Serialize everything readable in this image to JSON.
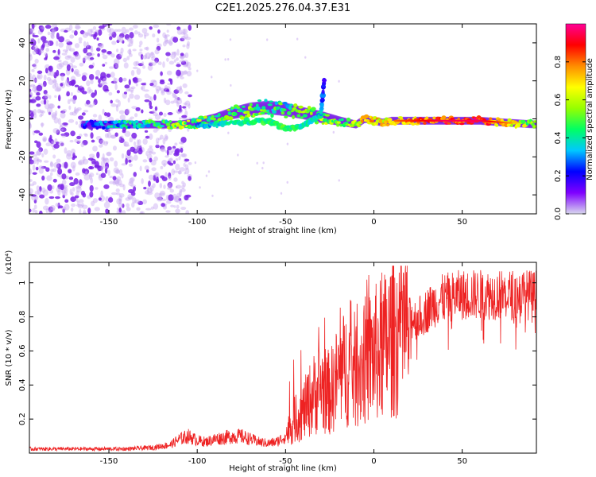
{
  "title": "C2E1.2025.276.04.37.E31",
  "colors": {
    "snr_line": "#ee2222",
    "axis": "#000000",
    "faint_marks": "#c8a8f2",
    "dense_marks": "#7a22e6"
  },
  "chart_data": [
    {
      "type": "heatmap",
      "name": "spectrogram",
      "xlabel": "Height of straight line (km)",
      "ylabel": "Frequency (Hz)",
      "xlim": [
        -195,
        92
      ],
      "ylim": [
        -50,
        50
      ],
      "x_ticks": [
        -150,
        -100,
        -50,
        0,
        50
      ],
      "x_tick_labels": [
        "-150",
        "-100",
        "-50",
        "0",
        "50"
      ],
      "y_ticks": [
        -40,
        -20,
        0,
        20,
        40
      ],
      "y_tick_labels": [
        "-40",
        "-20",
        "0",
        "20",
        "40"
      ],
      "colorbar": {
        "label": "Normalized spectral amplitude",
        "range": [
          0,
          1
        ],
        "ticks": [
          0.0,
          0.2,
          0.4,
          0.6,
          0.8
        ],
        "tick_labels": [
          "0.0",
          "0.2",
          "0.4",
          "0.6",
          "0.8"
        ],
        "stops": [
          "#d8d8ee",
          "#7f00ff",
          "#0000ff",
          "#00c8ff",
          "#00ff64",
          "#96ff00",
          "#ffff00",
          "#ff8c00",
          "#ff0000",
          "#ff0096"
        ]
      },
      "noise_region": {
        "x_range": [
          -195,
          -118
        ],
        "freq_range": [
          -50,
          50
        ]
      },
      "main_trace": [
        {
          "x": -165,
          "freq": -3,
          "amp": 0.15,
          "width": 3
        },
        {
          "x": -150,
          "freq": -3,
          "amp": 0.3,
          "width": 3
        },
        {
          "x": -140,
          "freq": -3,
          "amp": 0.35,
          "width": 3
        },
        {
          "x": -130,
          "freq": -3,
          "amp": 0.4,
          "width": 3
        },
        {
          "x": -120,
          "freq": -3,
          "amp": 0.45,
          "width": 3
        },
        {
          "x": -110,
          "freq": -3,
          "amp": 0.55,
          "width": 3
        },
        {
          "x": -100,
          "freq": -2,
          "amp": 0.5,
          "width": 4
        },
        {
          "x": -90,
          "freq": 0,
          "amp": 0.45,
          "width": 5
        },
        {
          "x": -80,
          "freq": 3,
          "amp": 0.45,
          "width": 6
        },
        {
          "x": -70,
          "freq": 5,
          "amp": 0.5,
          "width": 7
        },
        {
          "x": -60,
          "freq": 6,
          "amp": 0.45,
          "width": 7
        },
        {
          "x": -50,
          "freq": 5,
          "amp": 0.4,
          "width": 7
        },
        {
          "x": -40,
          "freq": 3,
          "amp": 0.5,
          "width": 6
        },
        {
          "x": -30,
          "freq": 1,
          "amp": 0.55,
          "width": 6
        },
        {
          "x": -20,
          "freq": -1,
          "amp": 0.5,
          "width": 4
        },
        {
          "x": -10,
          "freq": -3,
          "amp": 0.6,
          "width": 3
        },
        {
          "x": -5,
          "freq": 0,
          "amp": 0.75,
          "width": 3
        },
        {
          "x": 0,
          "freq": -1,
          "amp": 0.7,
          "width": 3
        },
        {
          "x": 5,
          "freq": -2,
          "amp": 0.65,
          "width": 3
        },
        {
          "x": 10,
          "freq": -1,
          "amp": 0.7,
          "width": 3
        },
        {
          "x": 20,
          "freq": -1,
          "amp": 0.75,
          "width": 3
        },
        {
          "x": 40,
          "freq": -1,
          "amp": 0.85,
          "width": 3
        },
        {
          "x": 60,
          "freq": -1,
          "amp": 0.85,
          "width": 3
        },
        {
          "x": 75,
          "freq": -2,
          "amp": 0.7,
          "width": 3
        },
        {
          "x": 92,
          "freq": -3,
          "amp": 0.5,
          "width": 3
        }
      ],
      "secondary_branch": [
        {
          "x": -100,
          "freq": -4,
          "amp": 0.3
        },
        {
          "x": -80,
          "freq": -2,
          "amp": 0.4
        },
        {
          "x": -60,
          "freq": -1,
          "amp": 0.45
        },
        {
          "x": -50,
          "freq": -5,
          "amp": 0.45
        },
        {
          "x": -40,
          "freq": -4,
          "amp": 0.4
        },
        {
          "x": -30,
          "freq": 2,
          "amp": 0.35
        },
        {
          "x": -28,
          "freq": 22,
          "amp": 0.15
        }
      ]
    },
    {
      "type": "line",
      "name": "snr",
      "xlabel": "Height of straight line (km)",
      "ylabel": "SNR (10 * v/v)",
      "y_multiplier": "(x10⁴)",
      "xlim": [
        -195,
        92
      ],
      "ylim": [
        0,
        1.12
      ],
      "x_ticks": [
        -150,
        -100,
        -50,
        0,
        50
      ],
      "x_tick_labels": [
        "-150",
        "-100",
        "-50",
        "0",
        "50"
      ],
      "y_ticks": [
        0.2,
        0.4,
        0.6,
        0.8,
        1.0
      ],
      "y_tick_labels": [
        "0.2",
        "0.4",
        "0.6",
        "0.8",
        "1"
      ],
      "envelope": {
        "x": [
          -195,
          -180,
          -160,
          -140,
          -125,
          -115,
          -110,
          -105,
          -100,
          -95,
          -90,
          -85,
          -80,
          -75,
          -70,
          -65,
          -60,
          -55,
          -50,
          -45,
          -40,
          -35,
          -30,
          -25,
          -20,
          -15,
          -10,
          -5,
          0,
          5,
          10,
          15,
          20,
          25,
          30,
          35,
          40,
          50,
          60,
          70,
          80,
          92
        ],
        "values": [
          0.03,
          0.03,
          0.03,
          0.03,
          0.04,
          0.06,
          0.1,
          0.12,
          0.09,
          0.08,
          0.1,
          0.11,
          0.12,
          0.12,
          0.1,
          0.08,
          0.07,
          0.08,
          0.12,
          0.22,
          0.28,
          0.38,
          0.45,
          0.4,
          0.52,
          0.58,
          0.55,
          0.62,
          0.66,
          0.7,
          0.78,
          0.8,
          0.85,
          0.85,
          0.9,
          0.95,
          0.98,
          1.0,
          1.0,
          1.0,
          1.0,
          1.0
        ]
      }
    }
  ]
}
